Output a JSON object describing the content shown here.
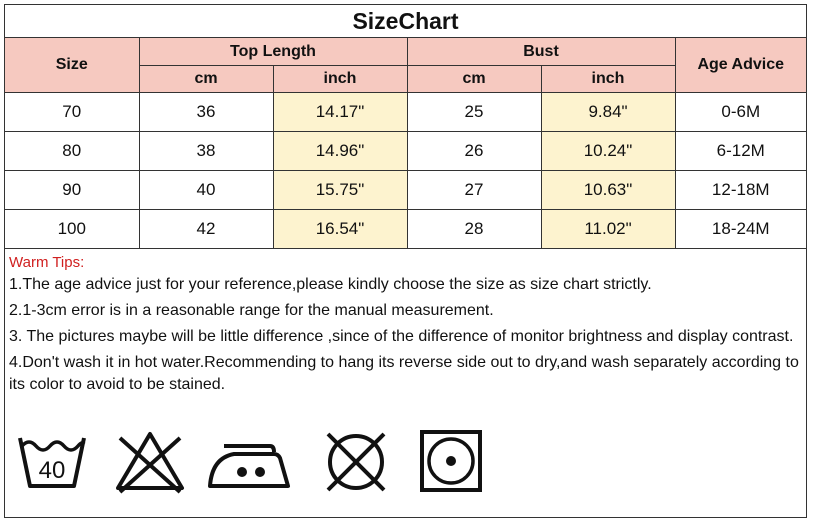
{
  "title": "SizeChart",
  "headers": {
    "size": "Size",
    "top_length": "Top Length",
    "bust": "Bust",
    "age_advice": "Age Advice",
    "cm": "cm",
    "inch": "inch"
  },
  "rows": [
    {
      "size": "70",
      "top_cm": "36",
      "top_inch": "14.17\"",
      "bust_cm": "25",
      "bust_inch": "9.84\"",
      "age": "0-6M"
    },
    {
      "size": "80",
      "top_cm": "38",
      "top_inch": "14.96\"",
      "bust_cm": "26",
      "bust_inch": "10.24\"",
      "age": "6-12M"
    },
    {
      "size": "90",
      "top_cm": "40",
      "top_inch": "15.75\"",
      "bust_cm": "27",
      "bust_inch": "10.63\"",
      "age": "12-18M"
    },
    {
      "size": "100",
      "top_cm": "42",
      "top_inch": "16.54\"",
      "bust_cm": "28",
      "bust_inch": "11.02\"",
      "age": "18-24M"
    }
  ],
  "tips": {
    "heading": "Warm Tips:",
    "items": [
      "1.The age advice just for your reference,please kindly choose the size as size chart strictly.",
      "2.1-3cm error is in a reasonable range for the manual measurement.",
      "3. The pictures maybe will be little difference ,since of the difference of monitor brightness and display contrast.",
      "4.Don't wash it in hot water.Recommending to hang its reverse side out to dry,and wash separately according to its color to avoid to be stained."
    ]
  },
  "care_icons": {
    "wash_temp": "40",
    "icons": [
      "wash-40-icon",
      "no-bleach-icon",
      "iron-medium-icon",
      "no-dry-clean-icon",
      "tumble-dry-icon"
    ]
  }
}
